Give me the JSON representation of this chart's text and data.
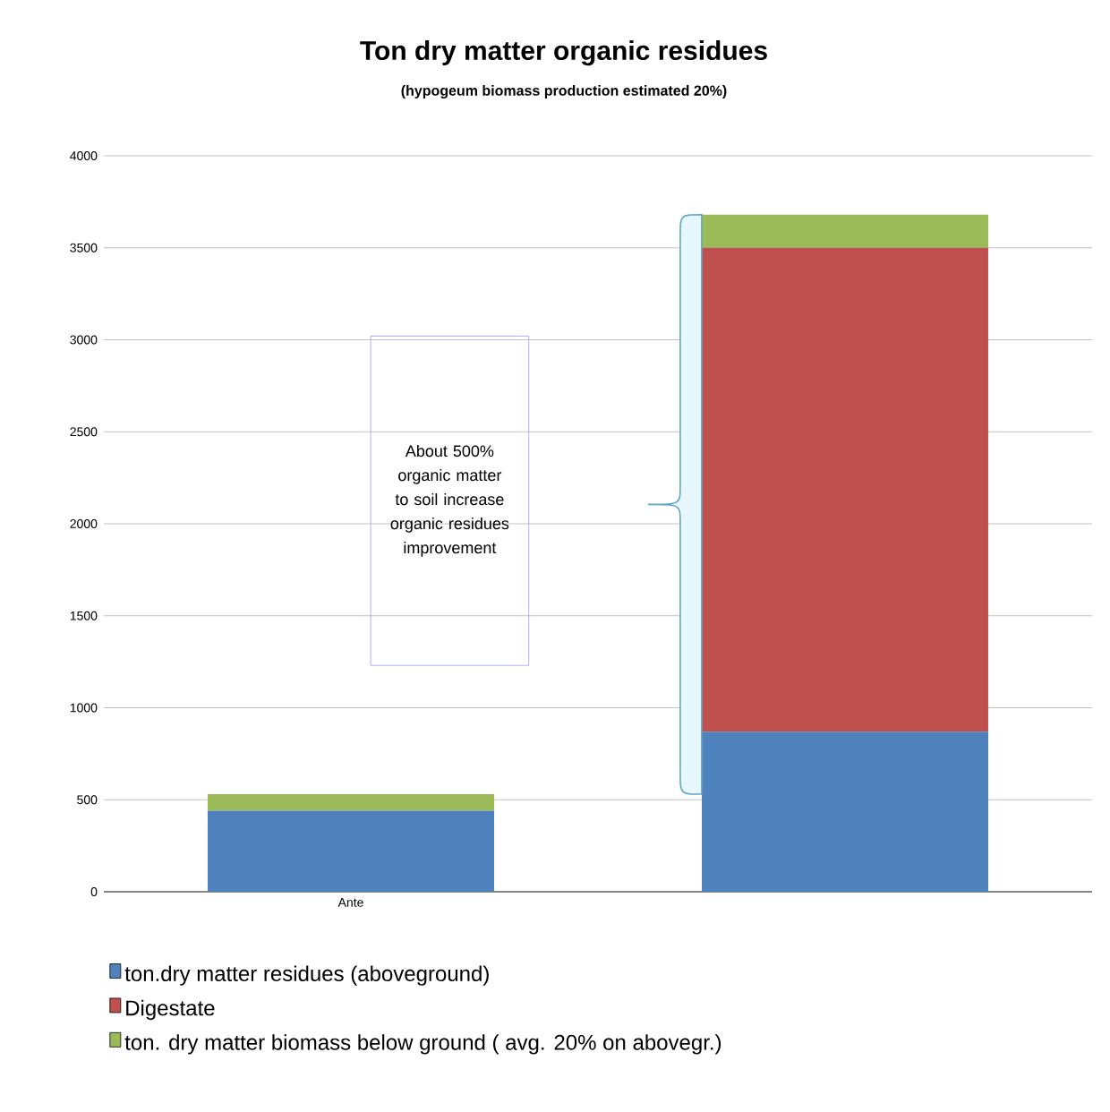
{
  "chart_data": {
    "type": "bar",
    "stacked": true,
    "title": "Ton dry matter organic residues",
    "subtitle": "(hypogeum biomass production estimated 20%)",
    "categories": [
      "Ante",
      null
    ],
    "series": [
      {
        "name": "ton.dry matter residues (aboveground)",
        "color": "#4f81bd",
        "values": [
          440,
          870
        ]
      },
      {
        "name": "Digestate",
        "color": "#c0504d",
        "values": [
          0,
          2630
        ]
      },
      {
        "name": "ton. dry matter biomass below ground ( avg. 20% on abovegr.)",
        "color": "#9bbb59",
        "values": [
          90,
          180
        ]
      }
    ],
    "ylim": [
      0,
      4000
    ],
    "yticks": [
      0,
      500,
      1000,
      1500,
      2000,
      2500,
      3000,
      3500,
      4000
    ],
    "grid": "y",
    "legend": "bottom",
    "annotations": [
      "About 500% organic matter to soil increase organic residues improvement"
    ]
  }
}
